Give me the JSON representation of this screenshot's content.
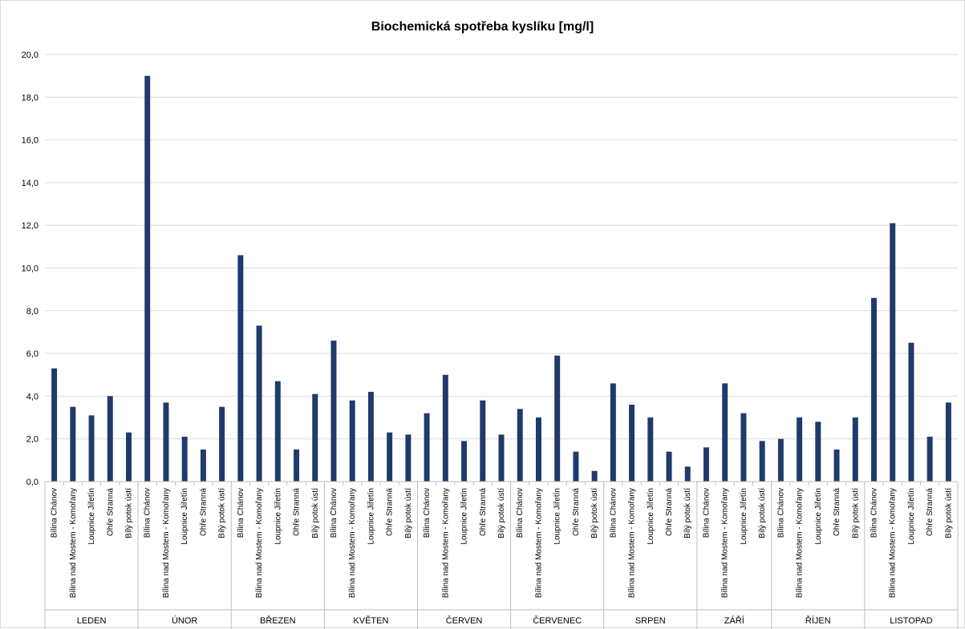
{
  "chart_data": {
    "type": "bar",
    "title": "Biochemická spotřeba kyslíku [mg/l]",
    "xlabel": "",
    "ylabel": "",
    "ylim": [
      0,
      20
    ],
    "y_ticks": [
      "0,0",
      "2,0",
      "4,0",
      "6,0",
      "8,0",
      "10,0",
      "12,0",
      "14,0",
      "16,0",
      "18,0",
      "20,0"
    ],
    "y_tick_values": [
      0,
      2,
      4,
      6,
      8,
      10,
      12,
      14,
      16,
      18,
      20
    ],
    "grid": true,
    "legend": "none",
    "color": "#1f3a6b",
    "groups": [
      {
        "label": "LEDEN",
        "categories": [
          "Bílina Chánov",
          "Bílina nad Mostem - Komořany",
          "Loupnice Jiřetín",
          "Ohře Stranná",
          "Bílý potok ústí"
        ],
        "values": [
          5.3,
          3.5,
          3.1,
          4.0,
          2.3
        ]
      },
      {
        "label": "ÚNOR",
        "categories": [
          "Bílina Chánov",
          "Bílina nad Mostem - Komořany",
          "Loupnice Jiřetín",
          "Ohře Stranná",
          "Bílý potok ústí"
        ],
        "values": [
          19.0,
          3.7,
          2.1,
          1.5,
          3.5
        ]
      },
      {
        "label": "BŘEZEN",
        "categories": [
          "Bílina Chánov",
          "Bílina nad Mostem - Komořany",
          "Loupnice Jiřetín",
          "Ohře Stranná",
          "Bílý potok ústí"
        ],
        "values": [
          10.6,
          7.3,
          4.7,
          1.5,
          4.1
        ]
      },
      {
        "label": "KVĚTEN",
        "categories": [
          "Bílina Chánov",
          "Bílina nad Mostem - Komořany",
          "Loupnice Jiřetín",
          "Ohře Stranná",
          "Bílý potok ústí"
        ],
        "values": [
          6.6,
          3.8,
          4.2,
          2.3,
          2.2
        ]
      },
      {
        "label": "ČERVEN",
        "categories": [
          "Bílina Chánov",
          "Bílina nad Mostem - Komořany",
          "Loupnice Jiřetín",
          "Ohře Stranná",
          "Bílý potok ústí"
        ],
        "values": [
          3.2,
          5.0,
          1.9,
          3.8,
          2.2
        ]
      },
      {
        "label": "ČERVENEC",
        "categories": [
          "Bílina Chánov",
          "Bílina nad Mostem - Komořany",
          "Loupnice Jiřetín",
          "Ohře Stranná",
          "Bílý potok ústí"
        ],
        "values": [
          3.4,
          3.0,
          5.9,
          1.4,
          0.5
        ]
      },
      {
        "label": "SRPEN",
        "categories": [
          "Bílina Chánov",
          "Bílina nad Mostem - Komořany",
          "Loupnice Jiřetín",
          "Ohře Stranná",
          "Bílý potok ústí"
        ],
        "values": [
          4.6,
          3.6,
          3.0,
          1.4,
          0.7
        ]
      },
      {
        "label": "ZÁŘÍ",
        "categories": [
          "Bílina Chánov",
          "Bílina nad Mostem - Komořany",
          "Loupnice Jiřetín",
          "Bílý potok ústí"
        ],
        "values": [
          1.6,
          4.6,
          3.2,
          1.9
        ]
      },
      {
        "label": "ŘÍJEN",
        "categories": [
          "Bílina Chánov",
          "Bílina nad Mostem - Komořany",
          "Loupnice Jiřetín",
          "Ohře Stranná",
          "Bílý potok ústí"
        ],
        "values": [
          2.0,
          3.0,
          2.8,
          1.5,
          3.0
        ]
      },
      {
        "label": "LISTOPAD",
        "categories": [
          "Bílina Chánov",
          "Bílina nad Mostem - Komořany",
          "Loupnice Jiřetín",
          "Ohře Stranná",
          "Bílý potok ústí"
        ],
        "values": [
          8.6,
          12.1,
          6.5,
          2.1,
          3.7
        ]
      }
    ]
  }
}
